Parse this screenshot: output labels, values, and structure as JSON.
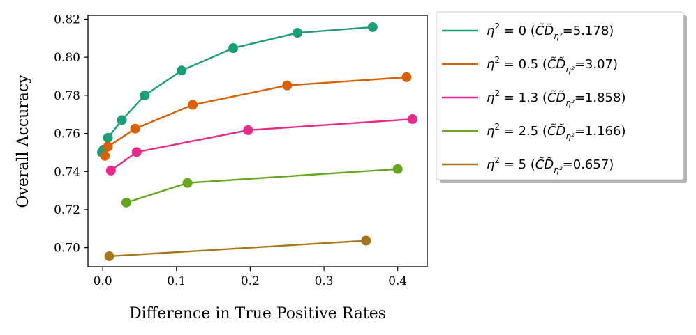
{
  "chart_data": {
    "type": "line",
    "title": "",
    "xlabel": "Difference in True Positive Rates",
    "ylabel": "Overall Accuracy",
    "xlim": [
      -0.02,
      0.44
    ],
    "ylim": [
      0.69,
      0.822
    ],
    "xticks": [
      0.0,
      0.1,
      0.2,
      0.3,
      0.4
    ],
    "xtick_labels": [
      "0.0",
      "0.1",
      "0.2",
      "0.3",
      "0.4"
    ],
    "yticks": [
      0.7,
      0.72,
      0.74,
      0.76,
      0.78,
      0.8,
      0.82
    ],
    "ytick_labels": [
      "0.70",
      "0.72",
      "0.74",
      "0.76",
      "0.78",
      "0.80",
      "0.82"
    ],
    "grid": false,
    "legend_position": "outside-right",
    "series": [
      {
        "name": "η² = 0 (CD̃η²=5.178)",
        "eta_value": "0",
        "cd_value": "5.178",
        "color": "#1b9e77",
        "x": [
          -0.001,
          0.001,
          0.007,
          0.026,
          0.057,
          0.107,
          0.177,
          0.264,
          0.366
        ],
        "y": [
          0.75,
          0.7515,
          0.7577,
          0.767,
          0.78,
          0.793,
          0.8048,
          0.8128,
          0.8158
        ]
      },
      {
        "name": "η² = 0.5 (CD̃η²=3.07)",
        "eta_value": "0.5",
        "cd_value": "3.07",
        "color": "#d95f02",
        "x": [
          0.003,
          0.007,
          0.044,
          0.122,
          0.25,
          0.412
        ],
        "y": [
          0.7482,
          0.753,
          0.7625,
          0.775,
          0.7852,
          0.7895
        ]
      },
      {
        "name": "η² = 1.3 (CD̃η²=1.858)",
        "eta_value": "1.3",
        "cd_value": "1.858",
        "color": "#e7298a",
        "x": [
          0.011,
          0.046,
          0.197,
          0.42
        ],
        "y": [
          0.7405,
          0.7502,
          0.7617,
          0.7675
        ]
      },
      {
        "name": "η² = 2.5 (CD̃η²=1.166)",
        "eta_value": "2.5",
        "cd_value": "1.166",
        "color": "#66a61e",
        "x": [
          0.032,
          0.115,
          0.4
        ],
        "y": [
          0.7237,
          0.734,
          0.7413
        ]
      },
      {
        "name": "η² = 5 (CD̃η²=0.657)",
        "eta_value": "5",
        "cd_value": "0.657",
        "color": "#a6761d",
        "x": [
          0.009,
          0.357
        ],
        "y": [
          0.6955,
          0.7037
        ]
      }
    ]
  }
}
